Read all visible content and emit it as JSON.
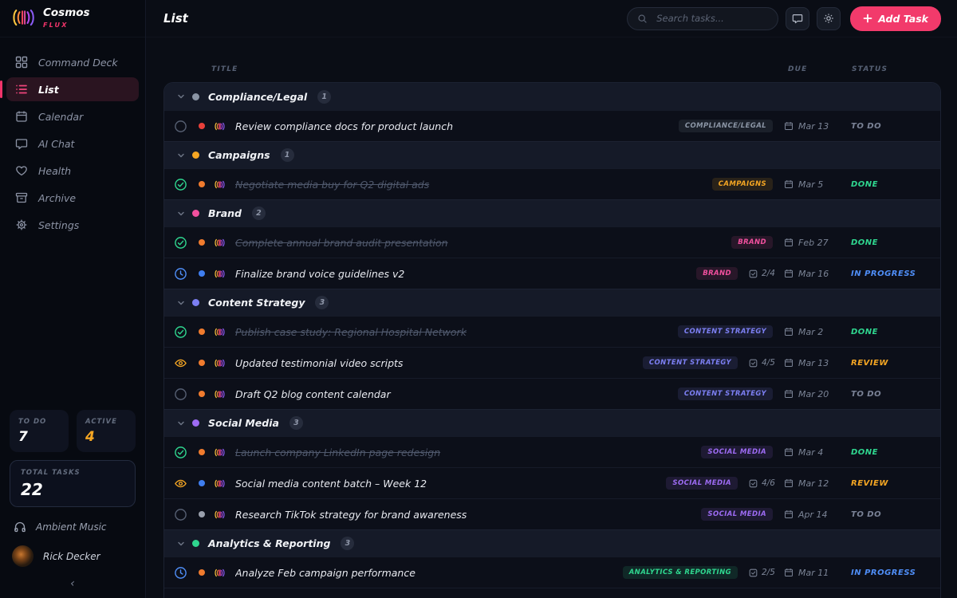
{
  "brand": {
    "name": "Cosmos",
    "flux": "FLUX"
  },
  "sidebar": {
    "items": [
      {
        "label": "Command Deck",
        "icon": "grid",
        "active": false
      },
      {
        "label": "List",
        "icon": "list",
        "active": true
      },
      {
        "label": "Calendar",
        "icon": "calendar",
        "active": false
      },
      {
        "label": "AI Chat",
        "icon": "chat",
        "active": false
      },
      {
        "label": "Health",
        "icon": "heart",
        "active": false
      },
      {
        "label": "Archive",
        "icon": "archive",
        "active": false
      },
      {
        "label": "Settings",
        "icon": "gear",
        "active": false
      }
    ],
    "stats": {
      "todo_label": "TO DO",
      "todo_value": "7",
      "active_label": "ACTIVE",
      "active_value": "4",
      "active_color": "#f5a623",
      "total_label": "TOTAL TASKS",
      "total_value": "22"
    },
    "music_label": "Ambient Music",
    "user_name": "Rick Decker",
    "collapse_glyph": "‹"
  },
  "header": {
    "title": "List",
    "search_placeholder": "Search tasks...",
    "add_task_label": "Add Task",
    "accent_color": "#f23a6b"
  },
  "table": {
    "title_col": "TITLE",
    "due_col": "DUE",
    "status_col": "STATUS"
  },
  "status_colors": {
    "TO DO": "#7a8296",
    "DONE": "#2fd68f",
    "IN PROGRESS": "#4f8ef7",
    "REVIEW": "#f5a623"
  },
  "icon_colors": {
    "circle": "#565f72",
    "check": "#2fd68f",
    "clock": "#4f8ef7",
    "eye": "#f5a623"
  },
  "groups": [
    {
      "name": "Compliance/Legal",
      "count": "1",
      "color": "#8b95a5",
      "tasks": [
        {
          "title": "Review compliance docs for product launch",
          "status": "TO DO",
          "status_icon": "circle",
          "done": false,
          "priority_color": "#e8403a",
          "tag": "COMPLIANCE/LEGAL",
          "checklist": null,
          "due": "Mar 13"
        }
      ]
    },
    {
      "name": "Campaigns",
      "count": "1",
      "color": "#f5a623",
      "tasks": [
        {
          "title": "Negotiate media buy for Q2 digital ads",
          "status": "DONE",
          "status_icon": "check",
          "done": true,
          "priority_color": "#f07b2e",
          "tag": "CAMPAIGNS",
          "checklist": null,
          "due": "Mar 5"
        }
      ]
    },
    {
      "name": "Brand",
      "count": "2",
      "color": "#f1509e",
      "tasks": [
        {
          "title": "Complete annual brand audit presentation",
          "status": "DONE",
          "status_icon": "check",
          "done": true,
          "priority_color": "#f07b2e",
          "tag": "BRAND",
          "checklist": null,
          "due": "Feb 27"
        },
        {
          "title": "Finalize brand voice guidelines v2",
          "status": "IN PROGRESS",
          "status_icon": "clock",
          "done": false,
          "priority_color": "#3f7ef0",
          "tag": "BRAND",
          "checklist": "2/4",
          "due": "Mar 16"
        }
      ]
    },
    {
      "name": "Content Strategy",
      "count": "3",
      "color": "#7c7ff2",
      "tasks": [
        {
          "title": "Publish case study: Regional Hospital Network",
          "status": "DONE",
          "status_icon": "check",
          "done": true,
          "priority_color": "#f07b2e",
          "tag": "CONTENT STRATEGY",
          "checklist": null,
          "due": "Mar 2"
        },
        {
          "title": "Updated testimonial video scripts",
          "status": "REVIEW",
          "status_icon": "eye",
          "done": false,
          "priority_color": "#f07b2e",
          "tag": "CONTENT STRATEGY",
          "checklist": "4/5",
          "due": "Mar 13"
        },
        {
          "title": "Draft Q2 blog content calendar",
          "status": "TO DO",
          "status_icon": "circle",
          "done": false,
          "priority_color": "#f07b2e",
          "tag": "CONTENT STRATEGY",
          "checklist": null,
          "due": "Mar 20"
        }
      ]
    },
    {
      "name": "Social Media",
      "count": "3",
      "color": "#9d6bf3",
      "tasks": [
        {
          "title": "Launch company LinkedIn page redesign",
          "status": "DONE",
          "status_icon": "check",
          "done": true,
          "priority_color": "#f07b2e",
          "tag": "SOCIAL MEDIA",
          "checklist": null,
          "due": "Mar 4"
        },
        {
          "title": "Social media content batch – Week 12",
          "status": "REVIEW",
          "status_icon": "eye",
          "done": false,
          "priority_color": "#3f7ef0",
          "tag": "SOCIAL MEDIA",
          "checklist": "4/6",
          "due": "Mar 12"
        },
        {
          "title": "Research TikTok strategy for brand awareness",
          "status": "TO DO",
          "status_icon": "circle",
          "done": false,
          "priority_color": "#9aa0ad",
          "tag": "SOCIAL MEDIA",
          "checklist": null,
          "due": "Apr 14"
        }
      ]
    },
    {
      "name": "Analytics & Reporting",
      "count": "3",
      "color": "#2fd68f",
      "tasks": [
        {
          "title": "Analyze Feb campaign performance",
          "status": "IN PROGRESS",
          "status_icon": "clock",
          "done": false,
          "priority_color": "#f07b2e",
          "tag": "ANALYTICS & REPORTING",
          "checklist": "2/5",
          "due": "Mar 11"
        }
      ]
    }
  ]
}
